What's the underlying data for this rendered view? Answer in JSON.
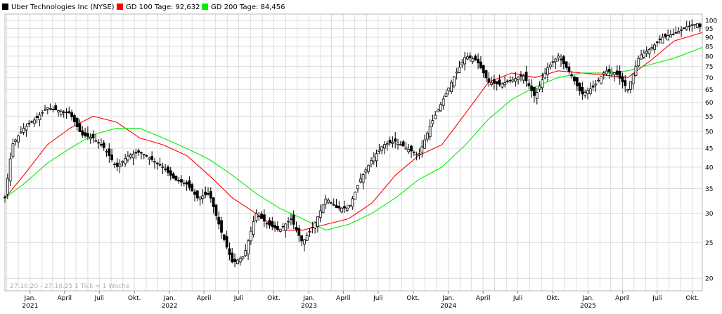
{
  "chart_data": {
    "type": "line",
    "subtype": "candlestick",
    "title": "",
    "xlabel": "",
    "ylabel": "",
    "y_scale": "log",
    "ylim": [
      18.5,
      104
    ],
    "grid": true,
    "legend_position": "top-left",
    "colors": {
      "price": "#000000",
      "candle_up": "#ffffff",
      "candle_down": "#000000",
      "gd100": "#ff0000",
      "gd200": "#00ee00",
      "grid": "#dcdcdc"
    },
    "legend": [
      {
        "label": "Uber Technologies Inc (NYSE)",
        "color": "#000000",
        "key": "price"
      },
      {
        "label": "GD 100 Tage: 92,632",
        "color": "#ff0000",
        "key": "gd100"
      },
      {
        "label": "GD 200 Tage: 84,456",
        "color": "#00ee00",
        "key": "gd200"
      }
    ],
    "y_ticks": [
      20,
      25,
      30,
      35,
      40,
      45,
      50,
      55,
      60,
      65,
      70,
      75,
      80,
      85,
      90,
      95,
      100
    ],
    "x_ticks": [
      {
        "date": "2021-01-01",
        "label": "Jan.",
        "year": "2021"
      },
      {
        "date": "2021-04-01",
        "label": "April",
        "year": ""
      },
      {
        "date": "2021-07-01",
        "label": "Juli",
        "year": ""
      },
      {
        "date": "2021-10-01",
        "label": "Okt.",
        "year": ""
      },
      {
        "date": "2022-01-01",
        "label": "Jan.",
        "year": "2022"
      },
      {
        "date": "2022-04-01",
        "label": "April",
        "year": ""
      },
      {
        "date": "2022-07-01",
        "label": "Juli",
        "year": ""
      },
      {
        "date": "2022-10-01",
        "label": "Okt.",
        "year": ""
      },
      {
        "date": "2023-01-01",
        "label": "Jan.",
        "year": "2023"
      },
      {
        "date": "2023-04-01",
        "label": "April",
        "year": ""
      },
      {
        "date": "2023-07-01",
        "label": "Juli",
        "year": ""
      },
      {
        "date": "2023-10-01",
        "label": "Okt.",
        "year": ""
      },
      {
        "date": "2024-01-01",
        "label": "Jan.",
        "year": "2024"
      },
      {
        "date": "2024-04-01",
        "label": "April",
        "year": ""
      },
      {
        "date": "2024-07-01",
        "label": "Juli",
        "year": ""
      },
      {
        "date": "2024-10-01",
        "label": "Okt.",
        "year": ""
      },
      {
        "date": "2025-01-01",
        "label": "Jan.",
        "year": "2025"
      },
      {
        "date": "2025-04-01",
        "label": "April",
        "year": ""
      },
      {
        "date": "2025-07-01",
        "label": "Juli",
        "year": ""
      },
      {
        "date": "2025-10-01",
        "label": "Okt.",
        "year": ""
      }
    ],
    "x_range": [
      "2020-10-27",
      "2025-10-27"
    ],
    "footnote": "27.10.20 - 27.10.25   1 Tick = 1 Woche",
    "series": [
      {
        "name": "Uber Technologies Inc (NYSE)",
        "key": "price",
        "x": [
          "2020-10-27",
          "2020-11-15",
          "2020-12-15",
          "2021-01-15",
          "2021-02-15",
          "2021-03-15",
          "2021-04-15",
          "2021-05-15",
          "2021-06-15",
          "2021-07-15",
          "2021-08-15",
          "2021-09-15",
          "2021-10-15",
          "2021-11-15",
          "2021-12-15",
          "2022-01-15",
          "2022-02-15",
          "2022-03-15",
          "2022-04-15",
          "2022-05-15",
          "2022-06-15",
          "2022-07-15",
          "2022-08-15",
          "2022-09-15",
          "2022-10-15",
          "2022-11-15",
          "2022-12-15",
          "2023-01-15",
          "2023-02-15",
          "2023-03-15",
          "2023-04-15",
          "2023-05-15",
          "2023-06-15",
          "2023-07-15",
          "2023-08-15",
          "2023-09-15",
          "2023-10-15",
          "2023-11-15",
          "2023-12-15",
          "2024-01-15",
          "2024-02-15",
          "2024-03-15",
          "2024-04-15",
          "2024-05-15",
          "2024-06-15",
          "2024-07-15",
          "2024-08-15",
          "2024-09-15",
          "2024-10-15",
          "2024-11-15",
          "2024-12-15",
          "2025-01-15",
          "2025-02-15",
          "2025-03-15",
          "2025-04-15",
          "2025-05-15",
          "2025-06-15",
          "2025-07-15",
          "2025-08-15",
          "2025-09-15",
          "2025-10-15",
          "2025-10-27"
        ],
        "values": [
          33,
          46,
          51,
          54,
          58,
          57,
          56,
          49,
          48,
          45,
          40,
          43,
          44,
          42,
          40,
          37,
          36,
          33,
          34,
          27,
          22,
          23,
          30,
          28,
          27,
          29,
          25,
          28,
          33,
          31,
          31,
          37,
          42,
          46,
          47,
          45,
          43,
          52,
          60,
          70,
          80,
          78,
          68,
          67,
          69,
          71,
          62,
          74,
          80,
          72,
          63,
          66,
          73,
          72,
          65,
          80,
          84,
          90,
          92,
          96,
          98,
          94
        ]
      },
      {
        "name": "GD 100 Tage: 92,632",
        "key": "gd100",
        "x": [
          "2020-10-27",
          "2020-12-15",
          "2021-02-15",
          "2021-04-15",
          "2021-06-15",
          "2021-08-15",
          "2021-10-15",
          "2021-12-15",
          "2022-02-15",
          "2022-04-15",
          "2022-06-15",
          "2022-08-15",
          "2022-10-15",
          "2022-12-15",
          "2023-02-15",
          "2023-04-15",
          "2023-06-15",
          "2023-08-15",
          "2023-10-15",
          "2023-12-15",
          "2024-02-15",
          "2024-04-15",
          "2024-06-15",
          "2024-08-15",
          "2024-10-15",
          "2024-12-15",
          "2025-02-15",
          "2025-04-15",
          "2025-06-15",
          "2025-08-15",
          "2025-10-27"
        ],
        "values": [
          33,
          38,
          46,
          51,
          55,
          53,
          48,
          46,
          43,
          38,
          33,
          30,
          27,
          27,
          28,
          29,
          32,
          38,
          43,
          46,
          56,
          68,
          72,
          70,
          73,
          72,
          71,
          70,
          78,
          88,
          92.632
        ]
      },
      {
        "name": "GD 200 Tage: 84,456",
        "key": "gd200",
        "x": [
          "2020-10-27",
          "2020-12-15",
          "2021-02-15",
          "2021-04-15",
          "2021-06-15",
          "2021-08-15",
          "2021-10-15",
          "2021-12-15",
          "2022-02-15",
          "2022-04-15",
          "2022-06-15",
          "2022-08-15",
          "2022-10-15",
          "2022-12-15",
          "2023-02-15",
          "2023-04-15",
          "2023-06-15",
          "2023-08-15",
          "2023-10-15",
          "2023-12-15",
          "2024-02-15",
          "2024-04-15",
          "2024-06-15",
          "2024-08-15",
          "2024-10-15",
          "2024-12-15",
          "2025-02-15",
          "2025-04-15",
          "2025-06-15",
          "2025-08-15",
          "2025-10-27"
        ],
        "values": [
          33,
          36,
          41,
          45,
          49,
          51,
          51,
          48,
          45,
          42,
          38,
          34,
          31,
          29,
          27,
          28,
          30,
          33,
          37,
          40,
          46,
          54,
          61,
          66,
          70,
          72,
          72,
          73,
          76,
          79,
          84.456
        ]
      }
    ]
  }
}
